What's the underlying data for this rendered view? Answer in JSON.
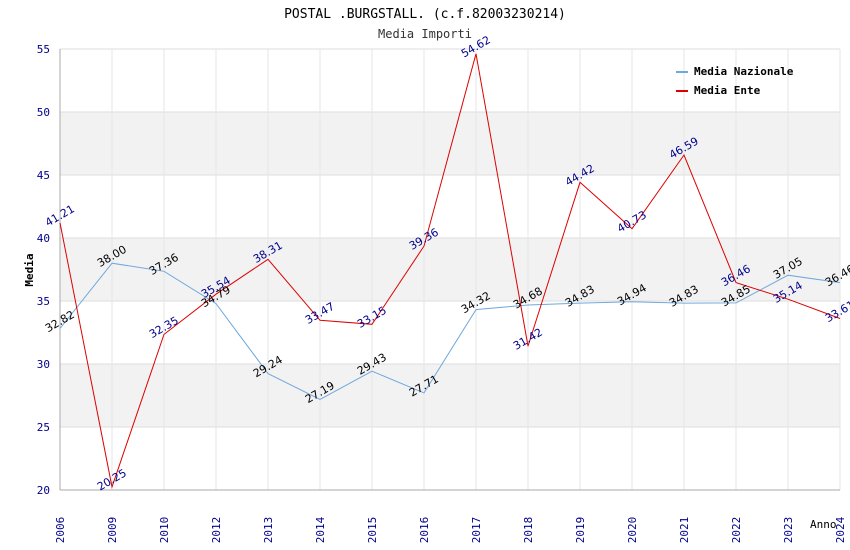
{
  "chart_data": {
    "type": "line",
    "title": "POSTAL .BURGSTALL. (c.f.82003230214)",
    "subtitle": "Media Importi",
    "xlabel": "Anno",
    "ylabel": "Media",
    "ylim": [
      20,
      55
    ],
    "yticks": [
      "20",
      "25",
      "30",
      "35",
      "40",
      "45",
      "50",
      "55"
    ],
    "categories": [
      "2006",
      "2009",
      "2010",
      "2012",
      "2013",
      "2014",
      "2015",
      "2016",
      "2017",
      "2018",
      "2019",
      "2020",
      "2021",
      "2022",
      "2023",
      "2024"
    ],
    "series": [
      {
        "name": "Media Nazionale",
        "color": "#6fa8dc",
        "label_color": "#000000",
        "values": [
          32.82,
          38.0,
          37.36,
          34.79,
          29.24,
          27.19,
          29.43,
          27.71,
          34.32,
          34.68,
          34.83,
          34.94,
          34.83,
          34.85,
          37.05,
          36.46
        ],
        "labels": [
          "32.82",
          "38.00",
          "37.36",
          "34.79",
          "29.24",
          "27.19",
          "29.43",
          "27.71",
          "34.32",
          "34.68",
          "34.83",
          "34.94",
          "34.83",
          "34.85",
          "37.05",
          "36.46"
        ]
      },
      {
        "name": "Media Ente",
        "color": "#dd0000",
        "label_color": "#00008b",
        "values": [
          41.21,
          20.25,
          32.35,
          35.54,
          38.31,
          33.47,
          33.15,
          39.36,
          54.62,
          31.42,
          44.42,
          40.73,
          46.59,
          36.46,
          35.14,
          33.61
        ],
        "labels": [
          "41.21",
          "20.25",
          "32.35",
          "35.54",
          "38.31",
          "33.47",
          "33.15",
          "39.36",
          "54.62",
          "31.42",
          "44.42",
          "40.73",
          "46.59",
          "36.46",
          "35.14",
          "33.61"
        ]
      }
    ],
    "grid": true,
    "legend": "top-right"
  }
}
